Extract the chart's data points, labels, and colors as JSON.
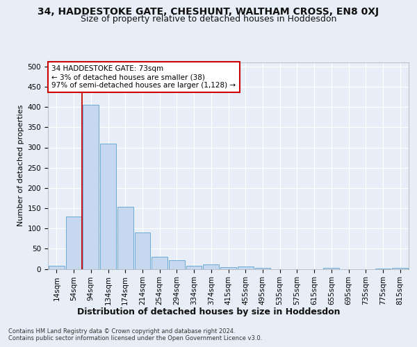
{
  "title_line1": "34, HADDESTOKE GATE, CHESHUNT, WALTHAM CROSS, EN8 0XJ",
  "title_line2": "Size of property relative to detached houses in Hoddesdon",
  "xlabel": "Distribution of detached houses by size in Hoddesdon",
  "ylabel": "Number of detached properties",
  "footer_line1": "Contains HM Land Registry data © Crown copyright and database right 2024.",
  "footer_line2": "Contains public sector information licensed under the Open Government Licence v3.0.",
  "bar_labels": [
    "14sqm",
    "54sqm",
    "94sqm",
    "134sqm",
    "174sqm",
    "214sqm",
    "254sqm",
    "294sqm",
    "334sqm",
    "374sqm",
    "415sqm",
    "455sqm",
    "495sqm",
    "535sqm",
    "575sqm",
    "615sqm",
    "655sqm",
    "695sqm",
    "735sqm",
    "775sqm",
    "815sqm"
  ],
  "bar_values": [
    7,
    130,
    405,
    310,
    153,
    90,
    30,
    21,
    8,
    12,
    5,
    6,
    3,
    0,
    0,
    0,
    2,
    0,
    0,
    1,
    2
  ],
  "bar_color": "#c5d8f0",
  "bar_edge_color": "#6aaad4",
  "ylim": [
    0,
    510
  ],
  "yticks": [
    0,
    50,
    100,
    150,
    200,
    250,
    300,
    350,
    400,
    450,
    500
  ],
  "annotation_text": "34 HADDESTOKE GATE: 73sqm\n← 3% of detached houses are smaller (38)\n97% of semi-detached houses are larger (1,128) →",
  "annotation_box_color": "#ffffff",
  "annotation_box_edge": "#cc0000",
  "red_line_x": 1.5,
  "bg_color": "#e8eef7",
  "plot_bg_color": "#e8eef7",
  "grid_color": "#ffffff",
  "title_fontsize": 10,
  "subtitle_fontsize": 9,
  "ylabel_fontsize": 8,
  "xlabel_fontsize": 9,
  "tick_fontsize": 7.5,
  "footer_fontsize": 6,
  "annotation_fontsize": 7.5
}
